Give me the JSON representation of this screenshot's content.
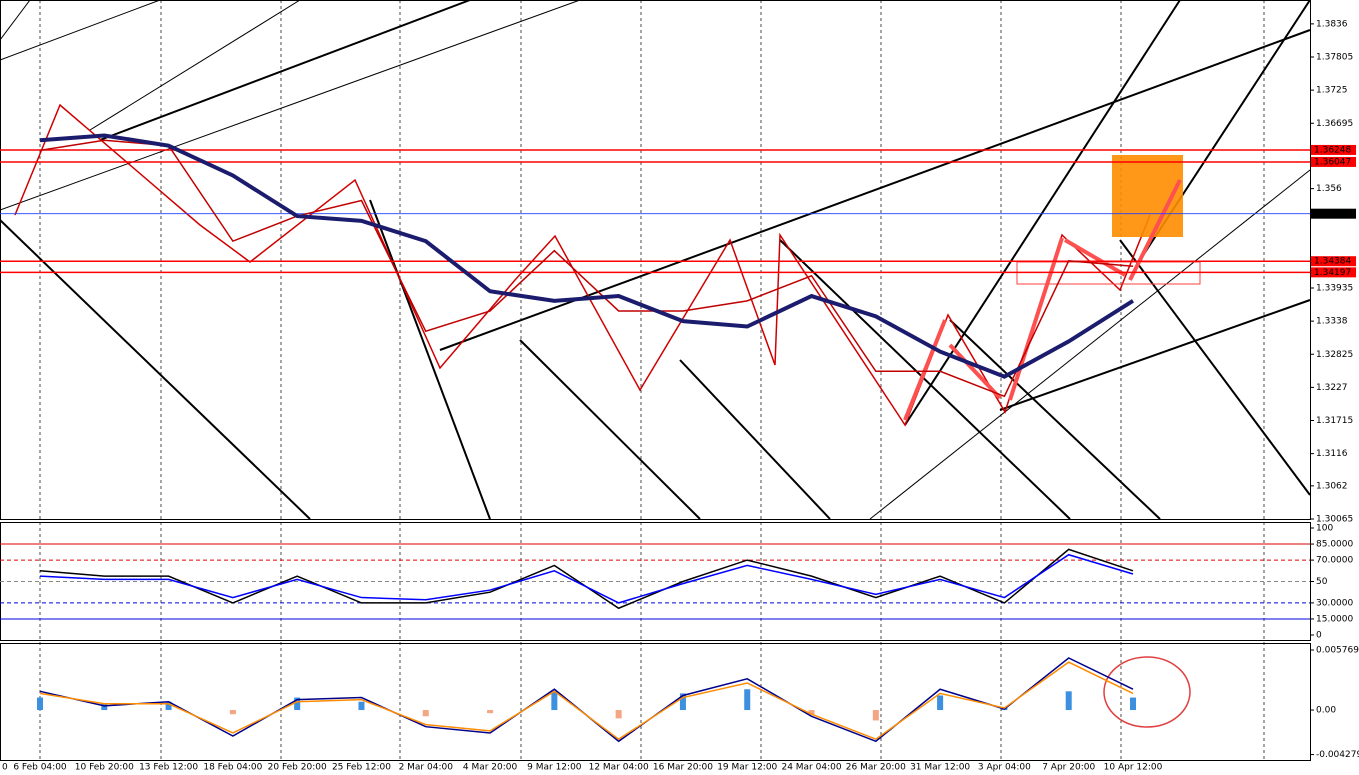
{
  "chart_data": [
    {
      "type": "line",
      "ylim": [
        1.30065,
        1.3876
      ],
      "yticks": [
        1.3836,
        1.37805,
        1.3725,
        1.36695,
        1.356,
        1.33935,
        1.3338,
        1.32825,
        1.3227,
        1.31715,
        1.3116,
        1.3062,
        1.30065
      ],
      "hlines": [
        1.36248,
        1.36047,
        1.3518,
        1.34384,
        1.34197
      ],
      "hline_colors": [
        "#ff0000",
        "#ff0000",
        "#2040ff",
        "#ff0000",
        "#ff0000"
      ],
      "series": [
        {
          "color": "#c00000",
          "values": [
            1.3624,
            1.3641,
            1.3632,
            1.3472,
            1.3514,
            1.354,
            1.3321,
            1.3355,
            1.3456,
            1.3355,
            1.3355,
            1.3372,
            1.3414,
            1.3254,
            1.3254,
            1.3212,
            1.3439,
            1.343
          ]
        },
        {
          "color": "#1c1c6e",
          "values": [
            1.3641,
            1.3649,
            1.3632,
            1.3582,
            1.3514,
            1.3506,
            1.3472,
            1.3388,
            1.3372,
            1.338,
            1.3338,
            1.3329,
            1.338,
            1.3346,
            1.3287,
            1.3245,
            1.3304,
            1.3372
          ]
        }
      ]
    },
    {
      "type": "line",
      "ylim": [
        0,
        100
      ],
      "yticks": [
        100,
        {
          "value": 85,
          "label": "85.0000"
        },
        {
          "value": 70,
          "label": "70.0000"
        },
        50,
        {
          "value": 30,
          "label": "30.0000"
        },
        {
          "value": 15,
          "label": "15.0000"
        },
        0
      ],
      "series": [
        {
          "color": "#000000",
          "values": [
            60,
            55,
            55,
            30,
            55,
            30,
            30,
            40,
            65,
            25,
            50,
            70,
            55,
            35,
            55,
            30,
            80,
            60
          ]
        },
        {
          "color": "#0000ff",
          "values": [
            55,
            52,
            52,
            35,
            52,
            35,
            33,
            42,
            60,
            30,
            48,
            65,
            52,
            38,
            52,
            35,
            75,
            57
          ]
        }
      ]
    },
    {
      "type": "macd",
      "ylim": [
        -0.0048,
        0.00625
      ],
      "yticks": [
        0.0057697,
        {
          "value": 0,
          "label": "0.00"
        },
        -0.004279
      ],
      "histogram": [
        0.0012,
        0.0006,
        0.0008,
        -0.0004,
        0.0012,
        0.0008,
        -0.0006,
        -0.0003,
        0.0018,
        -0.0008,
        0.0016,
        0.002,
        -0.0004,
        -0.001,
        0.0014,
        0.0003,
        0.0018,
        0.0012
      ],
      "histogram_colors": [
        "#3d8fe0",
        "#f4a582"
      ],
      "series": [
        {
          "color": "#00008b",
          "values": [
            0.0018,
            0.0004,
            0.0008,
            -0.0025,
            0.001,
            0.0012,
            -0.0016,
            -0.0022,
            0.002,
            -0.003,
            0.0014,
            0.003,
            -0.0006,
            -0.003,
            0.002,
            0.0001,
            0.005,
            0.002
          ]
        },
        {
          "color": "#ff8c00",
          "values": [
            0.0016,
            0.0006,
            0.0006,
            -0.0022,
            0.0008,
            0.001,
            -0.0014,
            -0.002,
            0.0018,
            -0.0028,
            0.0012,
            0.0026,
            -0.0004,
            -0.0028,
            0.0016,
            0.0002,
            0.0046,
            0.0016
          ]
        }
      ],
      "categories": [
        "6 Feb 04:00",
        "10 Feb 20:00",
        "13 Feb 12:00",
        "18 Feb 04:00",
        "20 Feb 20:00",
        "25 Feb 12:00",
        "2 Mar 04:00",
        "4 Mar 20:00",
        "9 Mar 12:00",
        "12 Mar 04:00",
        "16 Mar 20:00",
        "19 Mar 12:00",
        "24 Mar 04:00",
        "26 Mar 20:00",
        "31 Mar 12:00",
        "3 Apr 04:00",
        "7 Apr 20:00",
        "10 Apr 12:00"
      ]
    }
  ]
}
